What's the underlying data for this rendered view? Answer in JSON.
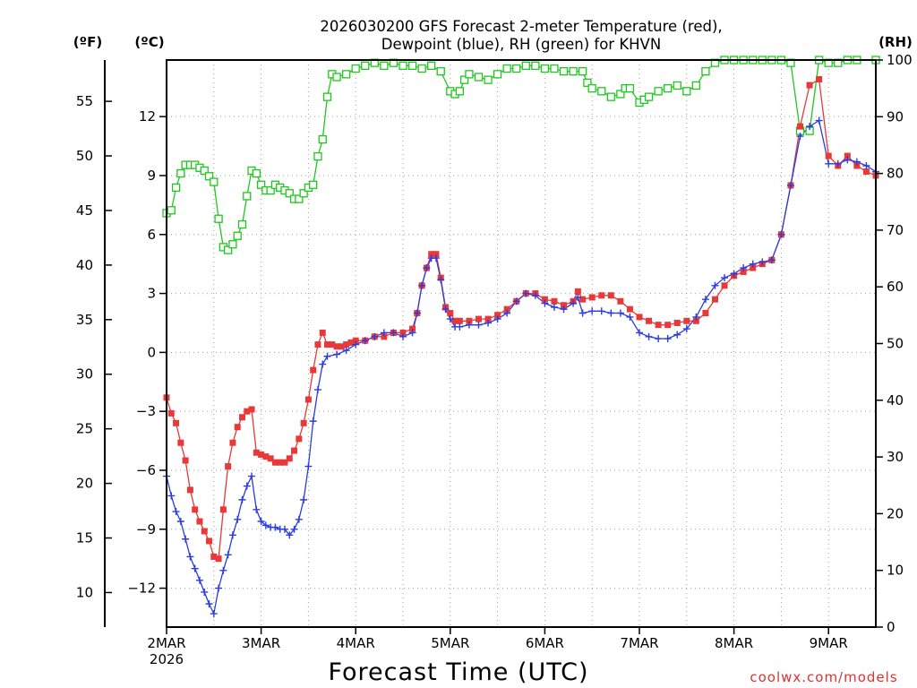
{
  "chart_data": {
    "type": "line",
    "title": [
      "2026030200 GFS Forecast 2-meter Temperature (red),",
      "Dewpoint (blue), RH (green) for KHVN"
    ],
    "xlabel": "Forecast Time (UTC)",
    "credit": "coolwx.com/models",
    "units": {
      "fahrenheit": "(ºF)",
      "celsius": "(ºC)",
      "rh": "(RH)"
    },
    "x_ticks": [
      {
        "day": 0,
        "label": "2MAR",
        "sub": "2026"
      },
      {
        "day": 1,
        "label": "3MAR",
        "sub": ""
      },
      {
        "day": 2,
        "label": "4MAR",
        "sub": ""
      },
      {
        "day": 3,
        "label": "5MAR",
        "sub": ""
      },
      {
        "day": 4,
        "label": "6MAR",
        "sub": ""
      },
      {
        "day": 5,
        "label": "7MAR",
        "sub": ""
      },
      {
        "day": 6,
        "label": "8MAR",
        "sub": ""
      },
      {
        "day": 7,
        "label": "9MAR",
        "sub": ""
      }
    ],
    "x_range_days": [
      0,
      7.5
    ],
    "celsius_range": [
      -13.98,
      14.88
    ],
    "celsius_ticks": [
      -12,
      -9,
      -6,
      -3,
      0,
      3,
      6,
      9,
      12
    ],
    "celsius_tick_labels": [
      "−12",
      "−9",
      "−6",
      "−3",
      "0",
      "3",
      "6",
      "9",
      "12"
    ],
    "fahrenheit_ticks": [
      10,
      15,
      20,
      25,
      30,
      35,
      40,
      45,
      50,
      55
    ],
    "fahrenheit_tick_labels": [
      "10",
      "15",
      "20",
      "25",
      "30",
      "35",
      "40",
      "45",
      "50",
      "55"
    ],
    "rh_range": [
      0,
      100
    ],
    "rh_ticks": [
      0,
      10,
      20,
      30,
      40,
      50,
      60,
      70,
      80,
      90,
      100
    ],
    "rh_tick_labels": [
      "0",
      "10",
      "20",
      "30",
      "40",
      "50",
      "60",
      "70",
      "80",
      "90",
      "100"
    ],
    "grid": true,
    "colors": {
      "temperature": "#e83838",
      "dewpoint": "#2a3ce0",
      "rh": "#1ec81e",
      "grid": "#a0a0a0"
    },
    "series": [
      {
        "name": "Temperature (°C)",
        "color": "#e83838",
        "points": [
          [
            0.0,
            -2.3
          ],
          [
            0.05,
            -3.1
          ],
          [
            0.1,
            -3.6
          ],
          [
            0.15,
            -4.6
          ],
          [
            0.2,
            -5.5
          ],
          [
            0.25,
            -7.0
          ],
          [
            0.3,
            -8.0
          ],
          [
            0.35,
            -8.6
          ],
          [
            0.4,
            -9.1
          ],
          [
            0.45,
            -9.6
          ],
          [
            0.5,
            -10.4
          ],
          [
            0.55,
            -10.5
          ],
          [
            0.6,
            -8.0
          ],
          [
            0.65,
            -5.8
          ],
          [
            0.7,
            -4.6
          ],
          [
            0.75,
            -3.8
          ],
          [
            0.8,
            -3.3
          ],
          [
            0.85,
            -3.0
          ],
          [
            0.9,
            -2.9
          ],
          [
            0.95,
            -5.1
          ],
          [
            1.0,
            -5.2
          ],
          [
            1.05,
            -5.3
          ],
          [
            1.1,
            -5.4
          ],
          [
            1.15,
            -5.6
          ],
          [
            1.2,
            -5.6
          ],
          [
            1.25,
            -5.6
          ],
          [
            1.3,
            -5.4
          ],
          [
            1.35,
            -5.0
          ],
          [
            1.4,
            -4.4
          ],
          [
            1.45,
            -3.6
          ],
          [
            1.5,
            -2.4
          ],
          [
            1.55,
            -0.9
          ],
          [
            1.6,
            0.4
          ],
          [
            1.65,
            1.0
          ],
          [
            1.7,
            0.4
          ],
          [
            1.75,
            0.4
          ],
          [
            1.8,
            0.3
          ],
          [
            1.85,
            0.3
          ],
          [
            1.9,
            0.4
          ],
          [
            1.95,
            0.5
          ],
          [
            2.0,
            0.6
          ],
          [
            2.1,
            0.6
          ],
          [
            2.2,
            0.8
          ],
          [
            2.3,
            0.8
          ],
          [
            2.4,
            1.0
          ],
          [
            2.5,
            1.0
          ],
          [
            2.6,
            1.2
          ],
          [
            2.65,
            2.0
          ],
          [
            2.7,
            3.4
          ],
          [
            2.75,
            4.3
          ],
          [
            2.8,
            5.0
          ],
          [
            2.85,
            5.0
          ],
          [
            2.9,
            3.8
          ],
          [
            2.95,
            2.3
          ],
          [
            3.0,
            2.0
          ],
          [
            3.05,
            1.6
          ],
          [
            3.1,
            1.6
          ],
          [
            3.2,
            1.6
          ],
          [
            3.3,
            1.7
          ],
          [
            3.4,
            1.7
          ],
          [
            3.5,
            1.9
          ],
          [
            3.6,
            2.2
          ],
          [
            3.7,
            2.6
          ],
          [
            3.8,
            3.0
          ],
          [
            3.9,
            3.0
          ],
          [
            4.0,
            2.7
          ],
          [
            4.1,
            2.6
          ],
          [
            4.2,
            2.4
          ],
          [
            4.3,
            2.6
          ],
          [
            4.35,
            3.1
          ],
          [
            4.4,
            2.7
          ],
          [
            4.5,
            2.8
          ],
          [
            4.6,
            2.9
          ],
          [
            4.7,
            2.9
          ],
          [
            4.8,
            2.6
          ],
          [
            4.9,
            2.2
          ],
          [
            5.0,
            1.8
          ],
          [
            5.1,
            1.6
          ],
          [
            5.2,
            1.4
          ],
          [
            5.3,
            1.4
          ],
          [
            5.4,
            1.5
          ],
          [
            5.5,
            1.6
          ],
          [
            5.6,
            1.6
          ],
          [
            5.7,
            2.0
          ],
          [
            5.8,
            2.7
          ],
          [
            5.9,
            3.4
          ],
          [
            6.0,
            3.9
          ],
          [
            6.1,
            4.1
          ],
          [
            6.2,
            4.3
          ],
          [
            6.3,
            4.5
          ],
          [
            6.4,
            4.7
          ],
          [
            6.5,
            6.0
          ],
          [
            6.6,
            8.5
          ],
          [
            6.7,
            11.5
          ],
          [
            6.8,
            13.6
          ],
          [
            6.9,
            13.9
          ],
          [
            7.0,
            10.0
          ],
          [
            7.1,
            9.5
          ],
          [
            7.2,
            10.0
          ],
          [
            7.3,
            9.5
          ],
          [
            7.4,
            9.2
          ],
          [
            7.5,
            9.0
          ]
        ]
      },
      {
        "name": "Dewpoint (°C)",
        "color": "#2a3ce0",
        "points": [
          [
            0.0,
            -6.3
          ],
          [
            0.05,
            -7.3
          ],
          [
            0.1,
            -8.1
          ],
          [
            0.15,
            -8.6
          ],
          [
            0.2,
            -9.5
          ],
          [
            0.25,
            -10.4
          ],
          [
            0.3,
            -11.0
          ],
          [
            0.35,
            -11.6
          ],
          [
            0.4,
            -12.2
          ],
          [
            0.45,
            -12.8
          ],
          [
            0.5,
            -13.3
          ],
          [
            0.55,
            -12.0
          ],
          [
            0.6,
            -11.1
          ],
          [
            0.65,
            -10.3
          ],
          [
            0.7,
            -9.3
          ],
          [
            0.75,
            -8.5
          ],
          [
            0.8,
            -7.5
          ],
          [
            0.85,
            -6.8
          ],
          [
            0.9,
            -6.3
          ],
          [
            0.95,
            -8.0
          ],
          [
            1.0,
            -8.6
          ],
          [
            1.05,
            -8.8
          ],
          [
            1.1,
            -8.9
          ],
          [
            1.15,
            -8.9
          ],
          [
            1.2,
            -9.0
          ],
          [
            1.25,
            -9.0
          ],
          [
            1.3,
            -9.3
          ],
          [
            1.35,
            -9.0
          ],
          [
            1.4,
            -8.5
          ],
          [
            1.45,
            -7.5
          ],
          [
            1.5,
            -5.8
          ],
          [
            1.55,
            -3.5
          ],
          [
            1.6,
            -1.9
          ],
          [
            1.65,
            -0.6
          ],
          [
            1.7,
            -0.2
          ],
          [
            1.8,
            -0.1
          ],
          [
            1.9,
            0.1
          ],
          [
            2.0,
            0.4
          ],
          [
            2.1,
            0.6
          ],
          [
            2.2,
            0.8
          ],
          [
            2.3,
            1.0
          ],
          [
            2.4,
            1.0
          ],
          [
            2.5,
            0.8
          ],
          [
            2.6,
            1.0
          ],
          [
            2.65,
            2.0
          ],
          [
            2.7,
            3.4
          ],
          [
            2.75,
            4.3
          ],
          [
            2.8,
            4.8
          ],
          [
            2.85,
            4.8
          ],
          [
            2.9,
            3.7
          ],
          [
            2.95,
            2.2
          ],
          [
            3.0,
            1.7
          ],
          [
            3.05,
            1.3
          ],
          [
            3.1,
            1.3
          ],
          [
            3.2,
            1.4
          ],
          [
            3.3,
            1.4
          ],
          [
            3.4,
            1.5
          ],
          [
            3.5,
            1.7
          ],
          [
            3.6,
            2.0
          ],
          [
            3.7,
            2.6
          ],
          [
            3.8,
            3.0
          ],
          [
            3.9,
            2.9
          ],
          [
            4.0,
            2.5
          ],
          [
            4.1,
            2.3
          ],
          [
            4.2,
            2.2
          ],
          [
            4.3,
            2.5
          ],
          [
            4.35,
            2.8
          ],
          [
            4.4,
            2.0
          ],
          [
            4.5,
            2.1
          ],
          [
            4.6,
            2.1
          ],
          [
            4.7,
            2.0
          ],
          [
            4.8,
            2.0
          ],
          [
            4.9,
            1.8
          ],
          [
            5.0,
            1.0
          ],
          [
            5.1,
            0.8
          ],
          [
            5.2,
            0.7
          ],
          [
            5.3,
            0.7
          ],
          [
            5.4,
            0.9
          ],
          [
            5.5,
            1.2
          ],
          [
            5.6,
            1.8
          ],
          [
            5.7,
            2.7
          ],
          [
            5.8,
            3.4
          ],
          [
            5.9,
            3.8
          ],
          [
            6.0,
            4.0
          ],
          [
            6.1,
            4.3
          ],
          [
            6.2,
            4.5
          ],
          [
            6.3,
            4.6
          ],
          [
            6.4,
            4.7
          ],
          [
            6.5,
            6.0
          ],
          [
            6.6,
            8.5
          ],
          [
            6.7,
            11.0
          ],
          [
            6.8,
            11.5
          ],
          [
            6.9,
            11.8
          ],
          [
            7.0,
            9.6
          ],
          [
            7.1,
            9.6
          ],
          [
            7.2,
            9.8
          ],
          [
            7.3,
            9.7
          ],
          [
            7.4,
            9.5
          ],
          [
            7.5,
            9.2
          ]
        ]
      },
      {
        "name": "RH (%)",
        "color": "#1ec81e",
        "points": [
          [
            0.0,
            73
          ],
          [
            0.05,
            73.5
          ],
          [
            0.1,
            77.5
          ],
          [
            0.15,
            80
          ],
          [
            0.2,
            81.5
          ],
          [
            0.25,
            81.5
          ],
          [
            0.3,
            81.5
          ],
          [
            0.35,
            81
          ],
          [
            0.4,
            80.5
          ],
          [
            0.45,
            79.5
          ],
          [
            0.5,
            78.5
          ],
          [
            0.55,
            72
          ],
          [
            0.6,
            67
          ],
          [
            0.65,
            66.5
          ],
          [
            0.7,
            67.5
          ],
          [
            0.75,
            69
          ],
          [
            0.8,
            71
          ],
          [
            0.85,
            76
          ],
          [
            0.9,
            80.5
          ],
          [
            0.95,
            80
          ],
          [
            1.0,
            78
          ],
          [
            1.05,
            77
          ],
          [
            1.1,
            77
          ],
          [
            1.15,
            78
          ],
          [
            1.2,
            77.5
          ],
          [
            1.25,
            77
          ],
          [
            1.3,
            76.5
          ],
          [
            1.35,
            75.5
          ],
          [
            1.4,
            75.5
          ],
          [
            1.45,
            76.5
          ],
          [
            1.5,
            77.5
          ],
          [
            1.55,
            78
          ],
          [
            1.6,
            83
          ],
          [
            1.65,
            86
          ],
          [
            1.7,
            93.5
          ],
          [
            1.75,
            97.5
          ],
          [
            1.8,
            97
          ],
          [
            1.9,
            97.5
          ],
          [
            2.0,
            98.5
          ],
          [
            2.1,
            99
          ],
          [
            2.2,
            99.5
          ],
          [
            2.3,
            99
          ],
          [
            2.4,
            99.5
          ],
          [
            2.5,
            99
          ],
          [
            2.6,
            99
          ],
          [
            2.7,
            98.5
          ],
          [
            2.8,
            99
          ],
          [
            2.9,
            98
          ],
          [
            3.0,
            94.5
          ],
          [
            3.05,
            94
          ],
          [
            3.1,
            94.5
          ],
          [
            3.15,
            96.5
          ],
          [
            3.2,
            97.5
          ],
          [
            3.3,
            97
          ],
          [
            3.4,
            96.5
          ],
          [
            3.5,
            97.5
          ],
          [
            3.6,
            98.5
          ],
          [
            3.7,
            98.5
          ],
          [
            3.8,
            99
          ],
          [
            3.9,
            99
          ],
          [
            4.0,
            98.5
          ],
          [
            4.1,
            98.5
          ],
          [
            4.2,
            98
          ],
          [
            4.3,
            98
          ],
          [
            4.4,
            98
          ],
          [
            4.45,
            96
          ],
          [
            4.5,
            95
          ],
          [
            4.6,
            94.5
          ],
          [
            4.7,
            93.5
          ],
          [
            4.8,
            94
          ],
          [
            4.85,
            95
          ],
          [
            4.9,
            95
          ],
          [
            5.0,
            92.5
          ],
          [
            5.05,
            93
          ],
          [
            5.1,
            93.5
          ],
          [
            5.2,
            94.5
          ],
          [
            5.3,
            95
          ],
          [
            5.4,
            95.5
          ],
          [
            5.5,
            94.5
          ],
          [
            5.6,
            95.5
          ],
          [
            5.7,
            98
          ],
          [
            5.8,
            99.5
          ],
          [
            5.9,
            100
          ],
          [
            6.0,
            100
          ],
          [
            6.1,
            100
          ],
          [
            6.2,
            100
          ],
          [
            6.3,
            100
          ],
          [
            6.4,
            100
          ],
          [
            6.5,
            100
          ],
          [
            6.6,
            99.5
          ],
          [
            6.7,
            87.5
          ],
          [
            6.8,
            87.5
          ],
          [
            6.9,
            100
          ],
          [
            7.0,
            99.5
          ],
          [
            7.1,
            99.5
          ],
          [
            7.2,
            100
          ],
          [
            7.3,
            100
          ],
          [
            7.5,
            100
          ]
        ]
      }
    ]
  }
}
